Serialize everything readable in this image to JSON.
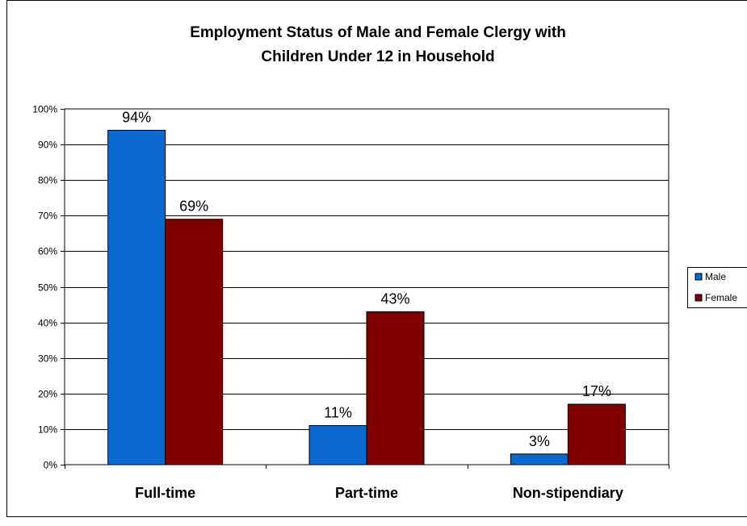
{
  "chart_data": {
    "type": "bar",
    "title_line1": "Employment Status of Male and Female Clergy with",
    "title_line2": "Children Under 12 in Household",
    "categories": [
      "Full-time",
      "Part-time",
      "Non-stipendiary"
    ],
    "series": [
      {
        "name": "Male",
        "values": [
          94,
          11,
          3
        ],
        "labels": [
          "94%",
          "11%",
          "3%"
        ],
        "color": "#0a6ad0"
      },
      {
        "name": "Female",
        "values": [
          69,
          43,
          17
        ],
        "labels": [
          "69%",
          "43%",
          "17%"
        ],
        "color": "#800000"
      }
    ],
    "ylim": [
      0,
      100
    ],
    "yticks": [
      "0%",
      "10%",
      "20%",
      "30%",
      "40%",
      "50%",
      "60%",
      "70%",
      "80%",
      "90%",
      "100%"
    ],
    "grid": true,
    "legend": "right",
    "plot_background": "#ffffff",
    "frame_border": "#000000"
  }
}
